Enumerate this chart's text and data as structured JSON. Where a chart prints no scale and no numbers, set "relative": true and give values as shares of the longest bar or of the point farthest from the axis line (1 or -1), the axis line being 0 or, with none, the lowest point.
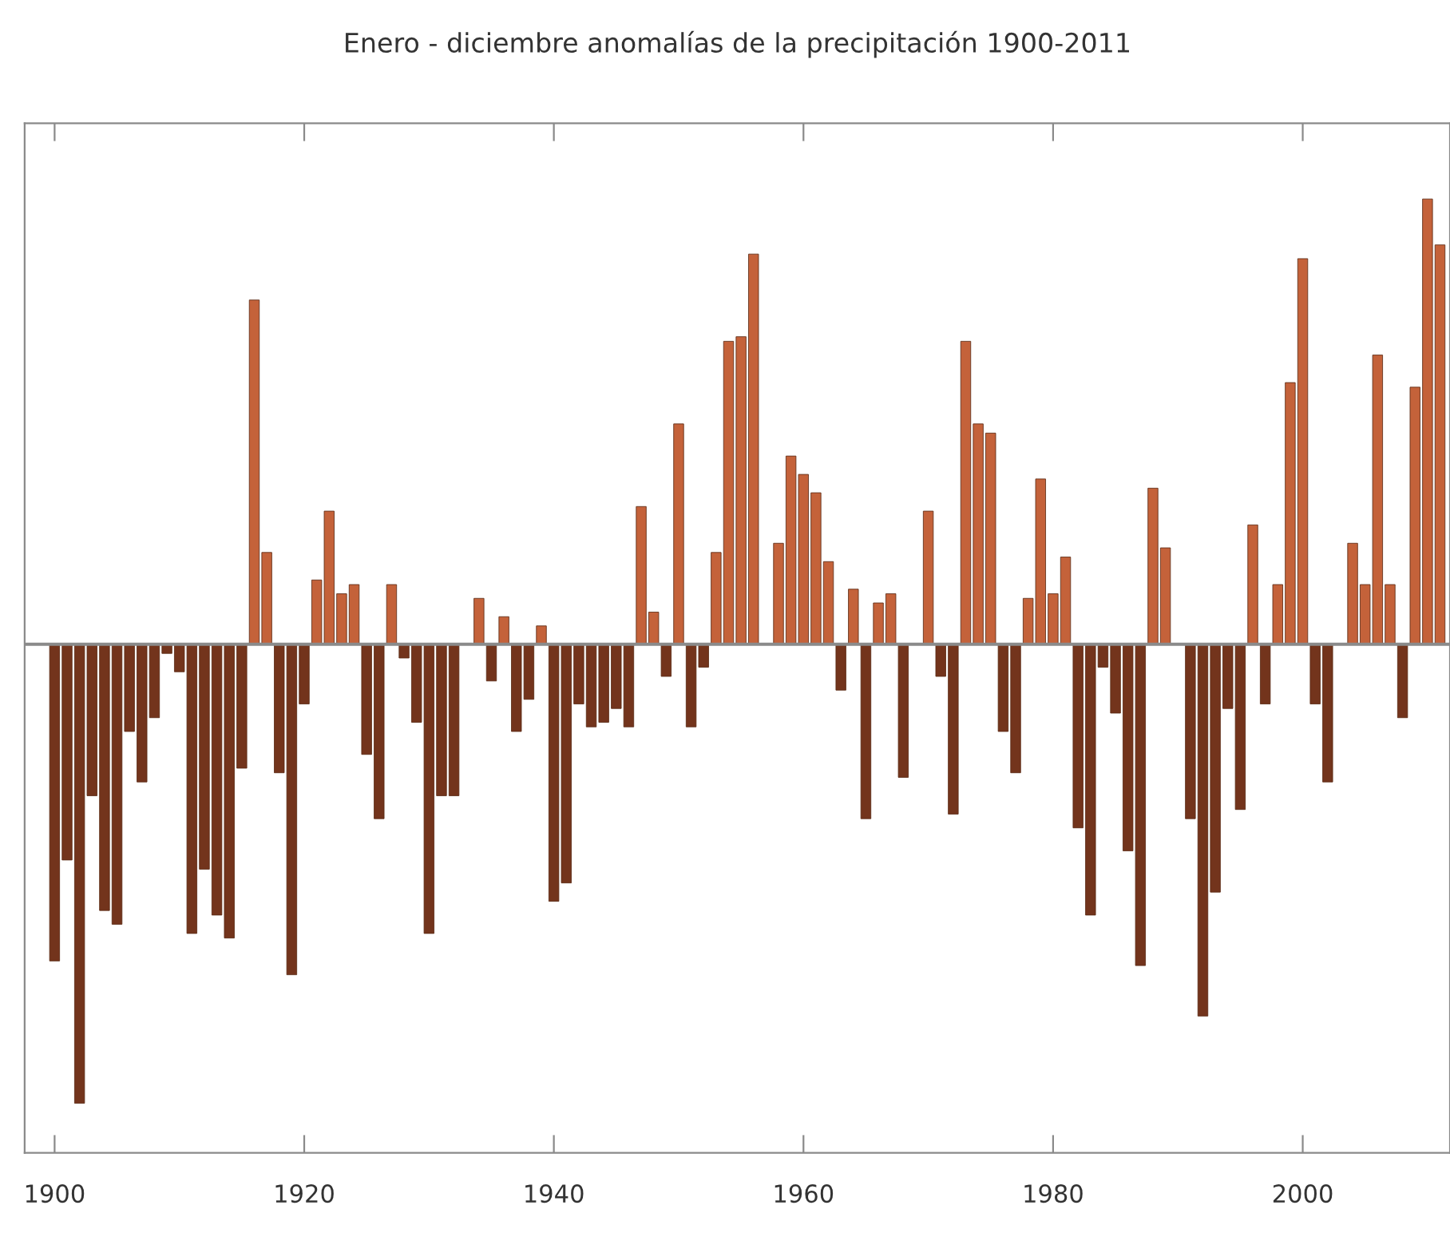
{
  "chart_data": {
    "type": "bar",
    "title": "Enero - diciembre anomalías de la precipitación 1900-2011",
    "relative": true,
    "x": [
      1900,
      1901,
      1902,
      1903,
      1904,
      1905,
      1906,
      1907,
      1908,
      1909,
      1910,
      1911,
      1912,
      1913,
      1914,
      1915,
      1916,
      1917,
      1918,
      1919,
      1920,
      1921,
      1922,
      1923,
      1924,
      1925,
      1926,
      1927,
      1928,
      1929,
      1930,
      1931,
      1932,
      1933,
      1934,
      1935,
      1936,
      1937,
      1938,
      1939,
      1940,
      1941,
      1942,
      1943,
      1944,
      1945,
      1946,
      1947,
      1948,
      1949,
      1950,
      1951,
      1952,
      1953,
      1954,
      1955,
      1956,
      1957,
      1958,
      1959,
      1960,
      1961,
      1962,
      1963,
      1964,
      1965,
      1966,
      1967,
      1968,
      1969,
      1970,
      1971,
      1972,
      1973,
      1974,
      1975,
      1976,
      1977,
      1978,
      1979,
      1980,
      1981,
      1982,
      1983,
      1984,
      1985,
      1986,
      1987,
      1988,
      1989,
      1990,
      1991,
      1992,
      1993,
      1994,
      1995,
      1996,
      1997,
      1998,
      1999,
      2000,
      2001,
      2002,
      2003,
      2004,
      2005,
      2006,
      2007,
      2008,
      2009,
      2010,
      2011
    ],
    "series": [
      {
        "color": "#c4623a",
        "values": [
          null,
          null,
          null,
          null,
          null,
          null,
          null,
          null,
          null,
          null,
          null,
          null,
          null,
          null,
          null,
          null,
          0.75,
          0.2,
          null,
          null,
          null,
          0.14,
          0.29,
          0.11,
          0.13,
          null,
          null,
          0.13,
          null,
          null,
          null,
          null,
          null,
          null,
          0.1,
          null,
          0.06,
          null,
          null,
          0.04,
          null,
          null,
          null,
          null,
          null,
          null,
          null,
          0.3,
          0.07,
          null,
          0.48,
          null,
          null,
          0.2,
          0.66,
          0.67,
          0.85,
          null,
          0.22,
          0.41,
          0.37,
          0.33,
          0.18,
          null,
          0.12,
          null,
          0.09,
          0.11,
          null,
          null,
          0.29,
          null,
          null,
          0.66,
          0.48,
          0.46,
          null,
          null,
          0.1,
          0.36,
          0.11,
          0.19,
          null,
          null,
          null,
          null,
          null,
          null,
          0.34,
          0.21,
          null,
          null,
          null,
          null,
          null,
          null,
          0.26,
          null,
          0.13,
          0.57,
          0.84,
          null,
          null,
          null,
          0.22,
          0.13,
          0.63,
          0.13,
          null,
          0.56,
          0.97,
          0.87
        ]
      },
      {
        "color": "#73341c",
        "values": [
          -0.69,
          -0.47,
          -1,
          -0.33,
          -0.58,
          -0.61,
          -0.19,
          -0.3,
          -0.16,
          -0.02,
          -0.06,
          -0.63,
          -0.49,
          -0.59,
          -0.64,
          -0.27,
          null,
          null,
          -0.28,
          -0.72,
          -0.13,
          null,
          null,
          null,
          null,
          -0.24,
          -0.38,
          null,
          -0.03,
          -0.17,
          -0.63,
          -0.33,
          -0.33,
          null,
          null,
          -0.08,
          null,
          -0.19,
          -0.12,
          null,
          -0.56,
          -0.52,
          -0.13,
          -0.18,
          -0.17,
          -0.14,
          -0.18,
          null,
          null,
          -0.07,
          null,
          -0.18,
          -0.05,
          null,
          null,
          null,
          null,
          null,
          null,
          null,
          null,
          null,
          null,
          -0.1,
          null,
          -0.38,
          null,
          null,
          -0.29,
          null,
          null,
          -0.07,
          -0.37,
          null,
          null,
          null,
          -0.19,
          -0.28,
          null,
          null,
          null,
          null,
          -0.4,
          -0.59,
          -0.05,
          -0.15,
          -0.45,
          -0.7,
          null,
          null,
          null,
          -0.38,
          -0.81,
          -0.54,
          -0.14,
          -0.36,
          null,
          -0.13,
          null,
          null,
          null,
          -0.13,
          -0.3,
          null,
          null,
          null,
          null,
          null,
          -0.16,
          null,
          null,
          null
        ]
      }
    ],
    "xlim": [
      1897.6,
      2011.8
    ],
    "xticks": [
      1900,
      1920,
      1940,
      1960,
      1980,
      2000
    ],
    "grid": false
  }
}
